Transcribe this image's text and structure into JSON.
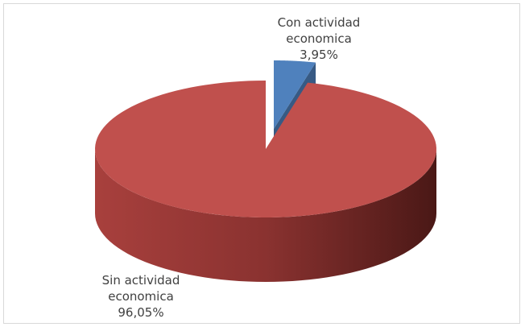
{
  "chart_data": {
    "type": "pie",
    "categories": [
      "Con actividad economica",
      "Sin actividad economica"
    ],
    "values": [
      3.95,
      96.05
    ],
    "value_labels": [
      "3,95%",
      "96,05%"
    ],
    "colors": [
      "#4f81bd",
      "#c0504d"
    ]
  }
}
